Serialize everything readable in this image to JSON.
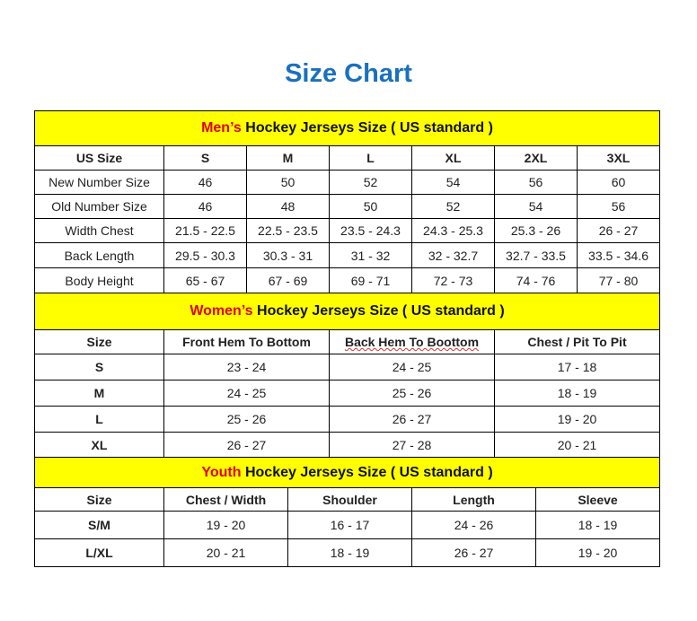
{
  "title": "Size Chart",
  "colors": {
    "title": "#1a70bd",
    "band": "#ffff00",
    "highlight": "#e00000"
  },
  "men": {
    "highlight": "Men’s",
    "heading": " Hockey Jerseys Size ( US standard )",
    "columns": [
      "US Size",
      "S",
      "M",
      "L",
      "XL",
      "2XL",
      "3XL"
    ],
    "rows": [
      [
        "New Number Size",
        "46",
        "50",
        "52",
        "54",
        "56",
        "60"
      ],
      [
        "Old Number Size",
        "46",
        "48",
        "50",
        "52",
        "54",
        "56"
      ],
      [
        "Width Chest",
        "21.5 - 22.5",
        "22.5 - 23.5",
        "23.5 - 24.3",
        "24.3 - 25.3",
        "25.3 - 26",
        "26 - 27"
      ],
      [
        "Back Length",
        "29.5 - 30.3",
        "30.3 - 31",
        "31 - 32",
        "32 - 32.7",
        "32.7 - 33.5",
        "33.5 - 34.6"
      ],
      [
        "Body Height",
        "65 - 67",
        "67 - 69",
        "69 - 71",
        "72 - 73",
        "74 - 76",
        "77 - 80"
      ]
    ]
  },
  "women": {
    "highlight": "Women’s",
    "heading": " Hockey Jerseys Size ( US standard )",
    "columns": [
      "Size",
      "Front Hem To Bottom",
      "Back Hem To Boottom",
      "Chest / Pit To Pit"
    ],
    "rows": [
      [
        "S",
        "23 - 24",
        "24 - 25",
        "17 - 18"
      ],
      [
        "M",
        "24 - 25",
        "25 - 26",
        "18 - 19"
      ],
      [
        "L",
        "25 - 26",
        "26 - 27",
        "19 - 20"
      ],
      [
        "XL",
        "26 - 27",
        "27 - 28",
        "20 - 21"
      ]
    ]
  },
  "youth": {
    "highlight": "Youth",
    "heading": " Hockey Jerseys Size ( US standard )",
    "columns": [
      "Size",
      "Chest / Width",
      "Shoulder",
      "Length",
      "Sleeve"
    ],
    "rows": [
      [
        "S/M",
        "19 - 20",
        "16 - 17",
        "24 - 26",
        "18 - 19"
      ],
      [
        "L/XL",
        "20 - 21",
        "18 - 19",
        "26 - 27",
        "19 - 20"
      ]
    ]
  }
}
